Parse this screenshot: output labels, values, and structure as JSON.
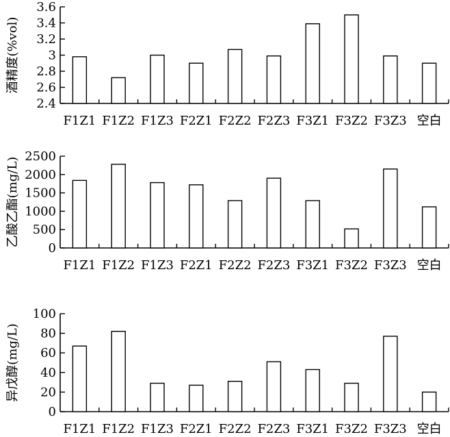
{
  "chart_data": [
    {
      "type": "bar",
      "categories": [
        "F1Z1",
        "F1Z2",
        "F1Z3",
        "F2Z1",
        "F2Z2",
        "F2Z3",
        "F3Z1",
        "F3Z2",
        "F3Z3",
        "空白"
      ],
      "values": [
        2.98,
        2.72,
        3.0,
        2.9,
        3.07,
        2.99,
        3.39,
        3.5,
        2.99,
        2.9
      ],
      "ylabel": "酒精度(%vol)",
      "ylim": [
        2.4,
        3.6
      ],
      "yticks": [
        2.4,
        2.6,
        2.8,
        3.0,
        3.2,
        3.4,
        3.6
      ],
      "ytick_labels": [
        "2.4",
        "2.6",
        "2.8",
        "3",
        "3.2",
        "3.4",
        "3.6"
      ],
      "grid": false
    },
    {
      "type": "bar",
      "categories": [
        "F1Z1",
        "F1Z2",
        "F1Z3",
        "F2Z1",
        "F2Z2",
        "F2Z3",
        "F3Z1",
        "F3Z2",
        "F3Z3",
        "空白"
      ],
      "values": [
        1840,
        2280,
        1780,
        1720,
        1290,
        1900,
        1290,
        520,
        2150,
        1120
      ],
      "ylabel": "乙酸乙酯(mg/L)",
      "ylim": [
        0,
        2500
      ],
      "yticks": [
        0,
        500,
        1000,
        1500,
        2000,
        2500
      ],
      "ytick_labels": [
        "0",
        "500",
        "1000",
        "1500",
        "2000",
        "2500"
      ],
      "grid": false
    },
    {
      "type": "bar",
      "categories": [
        "F1Z1",
        "F1Z2",
        "F1Z3",
        "F2Z1",
        "F2Z2",
        "F2Z3",
        "F3Z1",
        "F3Z2",
        "F3Z3",
        "空白"
      ],
      "values": [
        67,
        82,
        29,
        27,
        31,
        51,
        43,
        29,
        77,
        20
      ],
      "ylabel": "异戊醇(mg/L)",
      "ylim": [
        0,
        100
      ],
      "yticks": [
        0,
        20,
        40,
        60,
        80,
        100
      ],
      "ytick_labels": [
        "0",
        "20",
        "40",
        "60",
        "80",
        "100"
      ],
      "grid": false
    }
  ]
}
